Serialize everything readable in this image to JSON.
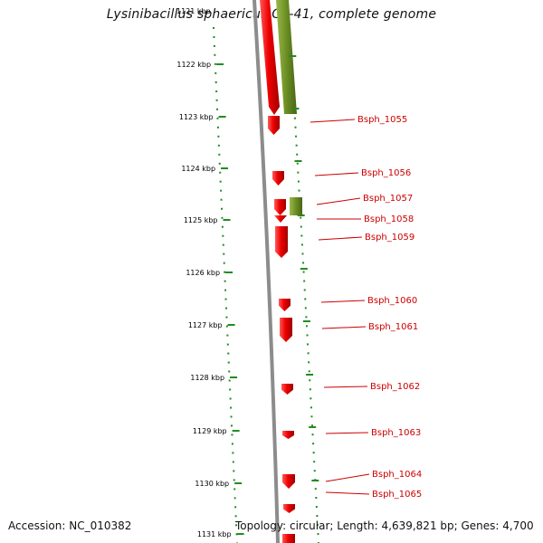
{
  "title": "Lysinibacillus sphaericus C3-41, complete genome",
  "accession_text": "Accession: NC_010382",
  "topology_text": "Topology: circular; Length: 4,639,821 bp; Genes: 4,700",
  "top_tick_label": "1121 kbp",
  "ticks": [
    {
      "label": "1122 kbp"
    },
    {
      "label": "1123 kbp"
    },
    {
      "label": "1124 kbp"
    },
    {
      "label": "1125 kbp"
    },
    {
      "label": "1126 kbp"
    },
    {
      "label": "1127 kbp"
    },
    {
      "label": "1128 kbp"
    },
    {
      "label": "1129 kbp"
    },
    {
      "label": "1130 kbp"
    },
    {
      "label": "1131 kbp"
    }
  ],
  "genes": [
    {
      "name": "Bsph_1055",
      "strand": "reverse"
    },
    {
      "name": "Bsph_1056",
      "strand": "reverse"
    },
    {
      "name": "Bsph_1057",
      "strand": "forward"
    },
    {
      "name": "Bsph_1058",
      "strand": "reverse"
    },
    {
      "name": "Bsph_1059",
      "strand": "reverse"
    },
    {
      "name": "Bsph_1060",
      "strand": "reverse"
    },
    {
      "name": "Bsph_1061",
      "strand": "reverse"
    },
    {
      "name": "Bsph_1062",
      "strand": "reverse"
    },
    {
      "name": "Bsph_1063",
      "strand": "reverse"
    },
    {
      "name": "Bsph_1064",
      "strand": "reverse"
    },
    {
      "name": "Bsph_1065",
      "strand": "reverse"
    }
  ],
  "colors": {
    "reverse_gene": "#ee0000",
    "forward_gene": "#6b8e23",
    "backbone": "#8c8c8c",
    "ticks": "#228b22",
    "gene_label": "#cc0000"
  }
}
